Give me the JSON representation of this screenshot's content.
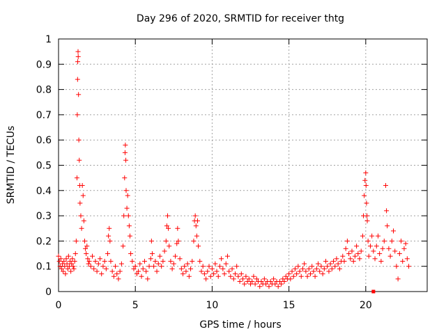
{
  "chart_data": {
    "type": "scatter",
    "title": "Day 296 of 2020, SRMTID for receiver thtg",
    "xlabel": "GPS time / hours",
    "ylabel": "SRMTID / TECUs",
    "xlim": [
      0,
      24
    ],
    "ylim": [
      0,
      1
    ],
    "xticks": [
      0,
      5,
      10,
      15,
      20
    ],
    "xtick_labels": [
      "0",
      "5",
      "10",
      "15",
      "20"
    ],
    "yticks": [
      0,
      0.1,
      0.2,
      0.3,
      0.4,
      0.5,
      0.6,
      0.7,
      0.8,
      0.9,
      1
    ],
    "ytick_labels": [
      "0",
      "0.1",
      "0.2",
      "0.3",
      "0.4",
      "0.5",
      "0.6",
      "0.7",
      "0.8",
      "0.9",
      "1"
    ],
    "grid": true,
    "marker": "+",
    "color": "#ff0000",
    "series": [
      {
        "name": "SRMTID",
        "points": [
          [
            0.0,
            0.14
          ],
          [
            0.05,
            0.12
          ],
          [
            0.1,
            0.1
          ],
          [
            0.15,
            0.13
          ],
          [
            0.2,
            0.09
          ],
          [
            0.25,
            0.11
          ],
          [
            0.3,
            0.08
          ],
          [
            0.35,
            0.12
          ],
          [
            0.4,
            0.1
          ],
          [
            0.45,
            0.07
          ],
          [
            0.5,
            0.13
          ],
          [
            0.55,
            0.11
          ],
          [
            0.6,
            0.09
          ],
          [
            0.65,
            0.14
          ],
          [
            0.7,
            0.1
          ],
          [
            0.75,
            0.12
          ],
          [
            0.8,
            0.08
          ],
          [
            0.85,
            0.11
          ],
          [
            0.9,
            0.13
          ],
          [
            0.95,
            0.1
          ],
          [
            1.0,
            0.09
          ],
          [
            1.05,
            0.12
          ],
          [
            1.1,
            0.15
          ],
          [
            1.15,
            0.2
          ],
          [
            1.2,
            0.45
          ],
          [
            1.22,
            0.7
          ],
          [
            1.24,
            0.84
          ],
          [
            1.25,
            0.91
          ],
          [
            1.27,
            0.95
          ],
          [
            1.28,
            0.93
          ],
          [
            1.3,
            0.78
          ],
          [
            1.32,
            0.6
          ],
          [
            1.35,
            0.52
          ],
          [
            1.38,
            0.42
          ],
          [
            1.4,
            0.35
          ],
          [
            1.45,
            0.3
          ],
          [
            1.5,
            0.25
          ],
          [
            1.55,
            0.42
          ],
          [
            1.6,
            0.38
          ],
          [
            1.65,
            0.28
          ],
          [
            1.7,
            0.2
          ],
          [
            1.75,
            0.17
          ],
          [
            1.8,
            0.15
          ],
          [
            1.85,
            0.18
          ],
          [
            1.9,
            0.13
          ],
          [
            1.95,
            0.11
          ],
          [
            2.0,
            0.12
          ],
          [
            2.1,
            0.1
          ],
          [
            2.2,
            0.14
          ],
          [
            2.3,
            0.09
          ],
          [
            2.4,
            0.12
          ],
          [
            2.5,
            0.08
          ],
          [
            2.6,
            0.11
          ],
          [
            2.7,
            0.13
          ],
          [
            2.8,
            0.07
          ],
          [
            2.9,
            0.1
          ],
          [
            3.0,
            0.12
          ],
          [
            3.1,
            0.09
          ],
          [
            3.2,
            0.15
          ],
          [
            3.25,
            0.22
          ],
          [
            3.3,
            0.25
          ],
          [
            3.35,
            0.2
          ],
          [
            3.4,
            0.12
          ],
          [
            3.5,
            0.08
          ],
          [
            3.6,
            0.06
          ],
          [
            3.7,
            0.1
          ],
          [
            3.8,
            0.07
          ],
          [
            3.9,
            0.05
          ],
          [
            4.0,
            0.08
          ],
          [
            4.1,
            0.11
          ],
          [
            4.2,
            0.18
          ],
          [
            4.25,
            0.3
          ],
          [
            4.3,
            0.45
          ],
          [
            4.33,
            0.55
          ],
          [
            4.35,
            0.58
          ],
          [
            4.38,
            0.52
          ],
          [
            4.4,
            0.4
          ],
          [
            4.45,
            0.33
          ],
          [
            4.5,
            0.38
          ],
          [
            4.55,
            0.3
          ],
          [
            4.6,
            0.26
          ],
          [
            4.65,
            0.22
          ],
          [
            4.7,
            0.15
          ],
          [
            4.8,
            0.12
          ],
          [
            4.9,
            0.09
          ],
          [
            5.0,
            0.1
          ],
          [
            5.1,
            0.07
          ],
          [
            5.2,
            0.08
          ],
          [
            5.3,
            0.11
          ],
          [
            5.4,
            0.06
          ],
          [
            5.5,
            0.09
          ],
          [
            5.6,
            0.12
          ],
          [
            5.7,
            0.08
          ],
          [
            5.8,
            0.05
          ],
          [
            5.9,
            0.1
          ],
          [
            6.0,
            0.13
          ],
          [
            6.05,
            0.2
          ],
          [
            6.1,
            0.15
          ],
          [
            6.2,
            0.1
          ],
          [
            6.3,
            0.12
          ],
          [
            6.4,
            0.08
          ],
          [
            6.5,
            0.11
          ],
          [
            6.6,
            0.14
          ],
          [
            6.7,
            0.1
          ],
          [
            6.8,
            0.12
          ],
          [
            6.9,
            0.16
          ],
          [
            7.0,
            0.2
          ],
          [
            7.05,
            0.26
          ],
          [
            7.1,
            0.3
          ],
          [
            7.15,
            0.25
          ],
          [
            7.2,
            0.18
          ],
          [
            7.3,
            0.12
          ],
          [
            7.4,
            0.09
          ],
          [
            7.5,
            0.11
          ],
          [
            7.6,
            0.14
          ],
          [
            7.7,
            0.19
          ],
          [
            7.75,
            0.25
          ],
          [
            7.8,
            0.2
          ],
          [
            7.9,
            0.13
          ],
          [
            8.0,
            0.09
          ],
          [
            8.1,
            0.07
          ],
          [
            8.2,
            0.1
          ],
          [
            8.3,
            0.08
          ],
          [
            8.4,
            0.11
          ],
          [
            8.5,
            0.06
          ],
          [
            8.6,
            0.09
          ],
          [
            8.7,
            0.12
          ],
          [
            8.8,
            0.2
          ],
          [
            8.85,
            0.28
          ],
          [
            8.9,
            0.3
          ],
          [
            8.95,
            0.26
          ],
          [
            9.0,
            0.22
          ],
          [
            9.05,
            0.28
          ],
          [
            9.1,
            0.18
          ],
          [
            9.2,
            0.12
          ],
          [
            9.3,
            0.08
          ],
          [
            9.4,
            0.1
          ],
          [
            9.5,
            0.07
          ],
          [
            9.6,
            0.05
          ],
          [
            9.7,
            0.08
          ],
          [
            9.8,
            0.1
          ],
          [
            9.9,
            0.06
          ],
          [
            10.0,
            0.09
          ],
          [
            10.1,
            0.07
          ],
          [
            10.2,
            0.11
          ],
          [
            10.3,
            0.08
          ],
          [
            10.4,
            0.06
          ],
          [
            10.5,
            0.1
          ],
          [
            10.6,
            0.13
          ],
          [
            10.7,
            0.09
          ],
          [
            10.8,
            0.07
          ],
          [
            10.9,
            0.11
          ],
          [
            11.0,
            0.14
          ],
          [
            11.1,
            0.08
          ],
          [
            11.2,
            0.06
          ],
          [
            11.3,
            0.09
          ],
          [
            11.4,
            0.05
          ],
          [
            11.5,
            0.07
          ],
          [
            11.6,
            0.1
          ],
          [
            11.7,
            0.06
          ],
          [
            11.8,
            0.04
          ],
          [
            11.9,
            0.07
          ],
          [
            12.0,
            0.05
          ],
          [
            12.1,
            0.03
          ],
          [
            12.2,
            0.06
          ],
          [
            12.3,
            0.04
          ],
          [
            12.4,
            0.05
          ],
          [
            12.5,
            0.03
          ],
          [
            12.6,
            0.04
          ],
          [
            12.7,
            0.06
          ],
          [
            12.8,
            0.03
          ],
          [
            12.9,
            0.05
          ],
          [
            13.0,
            0.04
          ],
          [
            13.1,
            0.02
          ],
          [
            13.2,
            0.04
          ],
          [
            13.3,
            0.03
          ],
          [
            13.4,
            0.05
          ],
          [
            13.5,
            0.03
          ],
          [
            13.6,
            0.04
          ],
          [
            13.7,
            0.02
          ],
          [
            13.8,
            0.04
          ],
          [
            13.9,
            0.03
          ],
          [
            14.0,
            0.05
          ],
          [
            14.1,
            0.03
          ],
          [
            14.2,
            0.04
          ],
          [
            14.3,
            0.02
          ],
          [
            14.4,
            0.04
          ],
          [
            14.5,
            0.03
          ],
          [
            14.6,
            0.05
          ],
          [
            14.7,
            0.04
          ],
          [
            14.8,
            0.06
          ],
          [
            14.9,
            0.05
          ],
          [
            15.0,
            0.07
          ],
          [
            15.1,
            0.05
          ],
          [
            15.2,
            0.08
          ],
          [
            15.3,
            0.06
          ],
          [
            15.4,
            0.09
          ],
          [
            15.5,
            0.07
          ],
          [
            15.6,
            0.1
          ],
          [
            15.7,
            0.08
          ],
          [
            15.8,
            0.06
          ],
          [
            15.9,
            0.09
          ],
          [
            16.0,
            0.11
          ],
          [
            16.1,
            0.08
          ],
          [
            16.2,
            0.06
          ],
          [
            16.3,
            0.09
          ],
          [
            16.4,
            0.07
          ],
          [
            16.5,
            0.1
          ],
          [
            16.6,
            0.08
          ],
          [
            16.7,
            0.06
          ],
          [
            16.8,
            0.09
          ],
          [
            16.9,
            0.11
          ],
          [
            17.0,
            0.08
          ],
          [
            17.1,
            0.1
          ],
          [
            17.2,
            0.07
          ],
          [
            17.3,
            0.09
          ],
          [
            17.4,
            0.12
          ],
          [
            17.5,
            0.1
          ],
          [
            17.6,
            0.08
          ],
          [
            17.7,
            0.11
          ],
          [
            17.8,
            0.09
          ],
          [
            17.9,
            0.12
          ],
          [
            18.0,
            0.1
          ],
          [
            18.1,
            0.13
          ],
          [
            18.2,
            0.11
          ],
          [
            18.3,
            0.09
          ],
          [
            18.4,
            0.12
          ],
          [
            18.5,
            0.14
          ],
          [
            18.6,
            0.12
          ],
          [
            18.7,
            0.17
          ],
          [
            18.8,
            0.2
          ],
          [
            18.9,
            0.15
          ],
          [
            19.0,
            0.13
          ],
          [
            19.1,
            0.16
          ],
          [
            19.2,
            0.12
          ],
          [
            19.3,
            0.14
          ],
          [
            19.4,
            0.18
          ],
          [
            19.5,
            0.15
          ],
          [
            19.6,
            0.13
          ],
          [
            19.7,
            0.16
          ],
          [
            19.8,
            0.22
          ],
          [
            19.85,
            0.3
          ],
          [
            19.9,
            0.38
          ],
          [
            19.95,
            0.44
          ],
          [
            20.0,
            0.47
          ],
          [
            20.02,
            0.42
          ],
          [
            20.05,
            0.35
          ],
          [
            20.08,
            0.3
          ],
          [
            20.1,
            0.28
          ],
          [
            20.15,
            0.2
          ],
          [
            20.2,
            0.14
          ],
          [
            20.3,
            0.18
          ],
          [
            20.4,
            0.22
          ],
          [
            20.5,
            0.16
          ],
          [
            20.6,
            0.13
          ],
          [
            20.7,
            0.18
          ],
          [
            20.8,
            0.22
          ],
          [
            20.9,
            0.15
          ],
          [
            21.0,
            0.12
          ],
          [
            21.1,
            0.17
          ],
          [
            21.2,
            0.2
          ],
          [
            21.3,
            0.42
          ],
          [
            21.35,
            0.32
          ],
          [
            21.4,
            0.26
          ],
          [
            21.5,
            0.17
          ],
          [
            21.6,
            0.14
          ],
          [
            21.7,
            0.2
          ],
          [
            21.8,
            0.24
          ],
          [
            21.9,
            0.16
          ],
          [
            22.0,
            0.1
          ],
          [
            22.1,
            0.05
          ],
          [
            22.2,
            0.15
          ],
          [
            22.3,
            0.2
          ],
          [
            22.4,
            0.12
          ],
          [
            22.5,
            0.17
          ],
          [
            22.6,
            0.19
          ],
          [
            22.7,
            0.13
          ],
          [
            22.8,
            0.1
          ]
        ]
      }
    ],
    "outlier": [
      20.5,
      0.0
    ]
  }
}
